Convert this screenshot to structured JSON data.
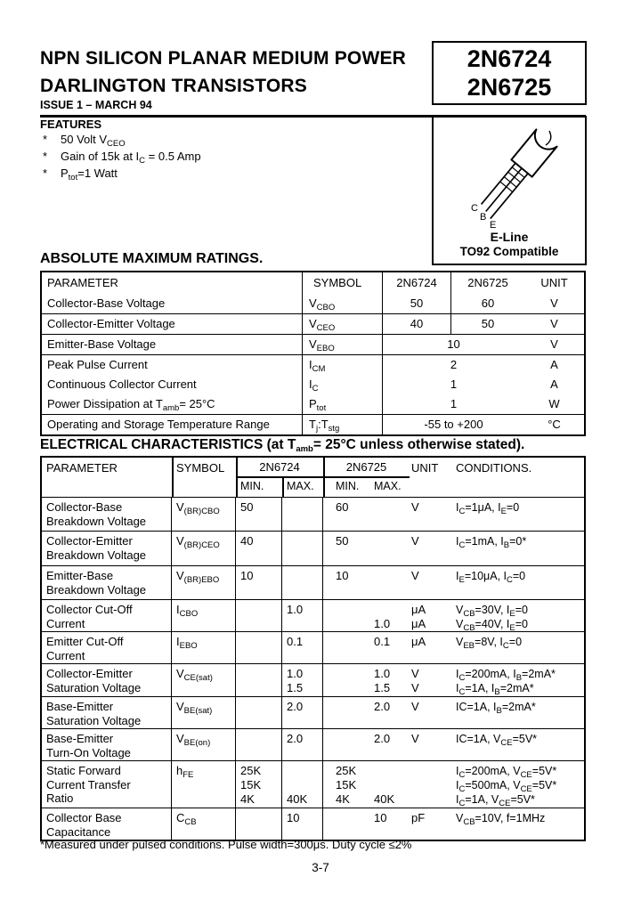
{
  "colors": {
    "ink": "#000000",
    "paper": "#ffffff"
  },
  "header": {
    "title_line1": "NPN SILICON PLANAR MEDIUM POWER",
    "title_line2": "DARLINGTON TRANSISTORS",
    "issue": "ISSUE 1 – MARCH 94",
    "part_numbers": [
      "2N6724",
      "2N6725"
    ]
  },
  "package": {
    "icon": "transistor-to92-icon",
    "pins": [
      "C",
      "B",
      "E"
    ],
    "label1": "E-Line",
    "label2": "TO92 Compatible"
  },
  "features": {
    "heading": "FEATURES",
    "items": [
      {
        "bullet": "*",
        "text": "50 Volt V~CEO~"
      },
      {
        "bullet": "*",
        "text": "Gain of 15k at I~C~ = 0.5 Amp"
      },
      {
        "bullet": "*",
        "text": "P~tot~=1 Watt"
      }
    ]
  },
  "abs_max": {
    "heading": "ABSOLUTE MAXIMUM RATINGS.",
    "headers": {
      "parameter": "PARAMETER",
      "symbol": "SYMBOL",
      "p1": "2N6724",
      "p2": "2N6725",
      "unit": "UNIT"
    },
    "rows": [
      {
        "param": "Collector-Base Voltage",
        "symbol": "V~CBO~",
        "divided": true,
        "v1": "50",
        "v2": "60",
        "unit": "V"
      },
      {
        "param": "Collector-Emitter Voltage",
        "symbol": "V~CEO~",
        "divided": true,
        "v1": "40",
        "v2": "50",
        "unit": "V"
      },
      {
        "param": "Emitter-Base Voltage",
        "symbol": "V~EBO~",
        "divided": false,
        "merged": "10",
        "unit": "V"
      },
      {
        "param": "Peak Pulse Current",
        "symbol": "I~CM~",
        "divided": false,
        "merged": "2",
        "unit": "A"
      },
      {
        "param": "Continuous Collector Current",
        "symbol": "I~C~",
        "divided": false,
        "merged": "1",
        "unit": "A"
      },
      {
        "param": "Power Dissipation at T~amb~= 25°C",
        "symbol": "P~tot~",
        "divided": false,
        "merged": "1",
        "unit": "W"
      },
      {
        "param": "Operating and Storage Temperature Range",
        "symbol": "T~j~:T~stg~",
        "divided": false,
        "merged": "-55 to +200",
        "unit": "°C"
      }
    ]
  },
  "elec": {
    "heading": "ELECTRICAL CHARACTERISTICS (at T~amb~= 25°C unless otherwise stated).",
    "headers": {
      "parameter": "PARAMETER",
      "symbol": "SYMBOL",
      "p1": "2N6724",
      "p2": "2N6725",
      "min1": "MIN.",
      "max1": "MAX.",
      "min2": "MIN.",
      "max2": "MAX.",
      "unit": "UNIT",
      "conditions": "CONDITIONS."
    },
    "rows": [
      {
        "param": [
          "Collector-Base",
          "Breakdown Voltage"
        ],
        "symbol": "V~(BR)CBO~",
        "lines": [
          {
            "min1": "50",
            "min2": "60",
            "unit": "V",
            "cond": "I~C~=1μA, I~E~=0"
          }
        ]
      },
      {
        "param": [
          "Collector-Emitter",
          "Breakdown Voltage"
        ],
        "symbol": "V~(BR)CEO~",
        "lines": [
          {
            "min1": "40",
            "min2": "50",
            "unit": "V",
            "cond": "I~C~=1mA, I~B~=0*"
          }
        ]
      },
      {
        "param": [
          "Emitter-Base",
          "Breakdown Voltage"
        ],
        "symbol": "V~(BR)EBO~",
        "lines": [
          {
            "min1": "10",
            "min2": "10",
            "unit": "V",
            "cond": "I~E~=10μA, I~C~=0"
          }
        ]
      },
      {
        "param": [
          "Collector Cut-Off",
          "Current"
        ],
        "symbol": "I~CBO~",
        "lines": [
          {
            "max1": "1.0",
            "unit": "μA",
            "cond": "V~CB~=30V, I~E~=0"
          },
          {
            "max2": "1.0",
            "unit": "μA",
            "cond": "V~CB~=40V, I~E~=0"
          }
        ]
      },
      {
        "param": [
          "Emitter Cut-Off",
          "Current"
        ],
        "symbol": "I~EBO~",
        "lines": [
          {
            "max1": "0.1",
            "max2": "0.1",
            "unit": "μA",
            "cond": "V~EB~=8V, I~C~=0"
          }
        ]
      },
      {
        "param": [
          "Collector-Emitter",
          "Saturation Voltage"
        ],
        "symbol": "V~CE(sat)~",
        "lines": [
          {
            "max1": "1.0",
            "max2": "1.0",
            "unit": "V",
            "cond": "I~C~=200mA, I~B~=2mA*"
          },
          {
            "max1": "1.5",
            "max2": "1.5",
            "unit": "V",
            "cond": "I~C~=1A, I~B~=2mA*"
          }
        ]
      },
      {
        "param": [
          "Base-Emitter",
          "Saturation Voltage"
        ],
        "symbol": "V~BE(sat)~",
        "lines": [
          {
            "max1": "2.0",
            "max2": "2.0",
            "unit": "V",
            "cond": "IC=1A, I~B~=2mA*"
          }
        ]
      },
      {
        "param": [
          "Base-Emitter",
          "Turn-On Voltage"
        ],
        "symbol": "V~BE(on)~",
        "lines": [
          {
            "max1": "2.0",
            "max2": "2.0",
            "unit": "V",
            "cond": "IC=1A, V~CE~=5V*"
          }
        ]
      },
      {
        "param": [
          "Static Forward",
          "Current Transfer",
          "Ratio"
        ],
        "symbol": "h~FE~",
        "lines": [
          {
            "min1": "25K",
            "min2": "25K",
            "cond": "I~C~=200mA, V~CE~=5V*"
          },
          {
            "min1": "15K",
            "min2": "15K",
            "cond": "I~C~=500mA, V~CE~=5V*"
          },
          {
            "min1": "4K",
            "max1": "40K",
            "min2": "4K",
            "max2": "40K",
            "cond": "I~C~=1A, V~CE~=5V*"
          }
        ]
      },
      {
        "param": [
          "Collector Base",
          "Capacitance"
        ],
        "symbol": "C~CB~",
        "lines": [
          {
            "max1": "10",
            "max2": "10",
            "unit": "pF",
            "cond": "V~CB~=10V, f=1MHz"
          }
        ]
      }
    ]
  },
  "footer": {
    "footnote": "*Measured under pulsed conditions. Pulse width=300μs. Duty cycle ≤2%",
    "page_number": "3-7"
  }
}
